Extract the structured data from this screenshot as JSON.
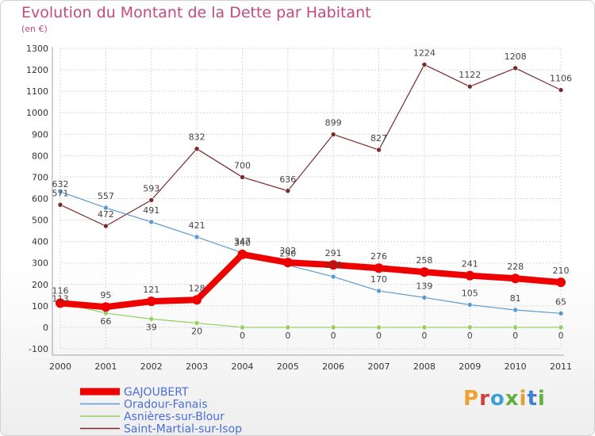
{
  "title": "Evolution du Montant de la Dette par Habitant",
  "subtitle": "(en €)",
  "logo": {
    "text": "Proxiti",
    "colors": [
      "#f0a030",
      "#d04040",
      "#40a0d0",
      "#60b040",
      "#e0a030",
      "#4080d0",
      "#60b040"
    ]
  },
  "chart_data": {
    "type": "line",
    "x": [
      "2000",
      "2001",
      "2002",
      "2003",
      "2004",
      "2005",
      "2006",
      "2007",
      "2008",
      "2009",
      "2010",
      "2011"
    ],
    "ylim": [
      -100,
      1300
    ],
    "yticks": [
      -100,
      0,
      100,
      200,
      300,
      400,
      500,
      600,
      700,
      800,
      900,
      1000,
      1100,
      1200,
      1300
    ],
    "grid": true,
    "legend": "bottom-left",
    "series": [
      {
        "name": "GAJOUBERT",
        "color": "#ee0000",
        "values": [
          113,
          95,
          121,
          128,
          340,
          302,
          291,
          276,
          258,
          241,
          228,
          210
        ]
      },
      {
        "name": "Oradour-Fanais",
        "color": "#5a9ad0",
        "values": [
          632,
          557,
          491,
          421,
          347,
          290,
          236,
          170,
          139,
          105,
          81,
          65
        ]
      },
      {
        "name": "Asnières-sur-Blour",
        "color": "#90d060",
        "values": [
          116,
          66,
          39,
          20,
          0,
          0,
          0,
          0,
          0,
          0,
          0,
          0
        ]
      },
      {
        "name": "Saint-Martial-sur-Isop",
        "color": "#7a2a2a",
        "values": [
          571,
          472,
          593,
          832,
          700,
          636,
          899,
          827,
          1224,
          1122,
          1208,
          1106
        ]
      }
    ]
  }
}
